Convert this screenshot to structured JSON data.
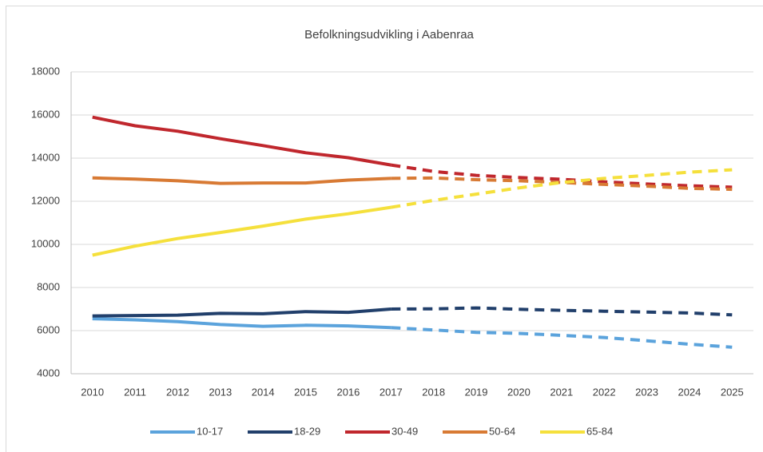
{
  "chart_data": {
    "type": "line",
    "title": "Befolkningsudvikling i Aabenraa",
    "categories": [
      "2010",
      "2011",
      "2012",
      "2013",
      "2014",
      "2015",
      "2016",
      "2017",
      "2018",
      "2019",
      "2020",
      "2021",
      "2022",
      "2023",
      "2024",
      "2025"
    ],
    "forecast_from": "2017",
    "series": [
      {
        "name": "10-17",
        "color": "#5ba3dc",
        "values": [
          6550,
          6500,
          6420,
          6280,
          6200,
          6250,
          6220,
          6140,
          6030,
          5920,
          5870,
          5780,
          5680,
          5530,
          5370,
          5230
        ]
      },
      {
        "name": "18-29",
        "color": "#213f6b",
        "values": [
          6680,
          6700,
          6720,
          6800,
          6780,
          6880,
          6850,
          7000,
          7010,
          7050,
          6990,
          6940,
          6900,
          6860,
          6820,
          6730
        ]
      },
      {
        "name": "30-49",
        "color": "#c0272d",
        "values": [
          15900,
          15500,
          15250,
          14900,
          14580,
          14250,
          14020,
          13680,
          13380,
          13200,
          13100,
          13020,
          12900,
          12800,
          12720,
          12650
        ]
      },
      {
        "name": "50-64",
        "color": "#d87a34",
        "values": [
          13080,
          13030,
          12950,
          12830,
          12850,
          12850,
          12980,
          13060,
          13080,
          13000,
          12950,
          12870,
          12780,
          12700,
          12600,
          12550
        ]
      },
      {
        "name": "65-84",
        "color": "#f5e03c",
        "values": [
          9500,
          9920,
          10270,
          10550,
          10850,
          11170,
          11420,
          11720,
          12040,
          12330,
          12620,
          12870,
          13060,
          13200,
          13350,
          13460
        ]
      }
    ],
    "ylim": [
      4000,
      18000
    ],
    "yticks": [
      4000,
      6000,
      8000,
      10000,
      12000,
      14000,
      16000,
      18000
    ],
    "grid": true,
    "legend": "bottom"
  }
}
